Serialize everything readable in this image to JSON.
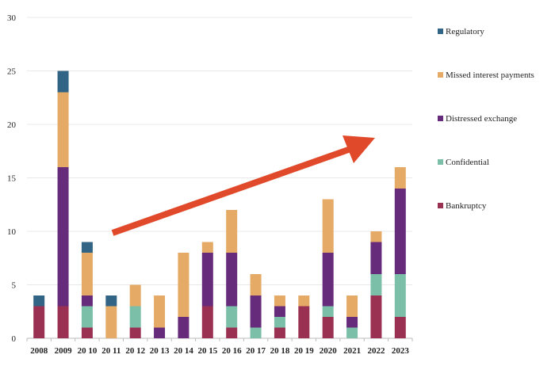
{
  "chart_data": {
    "type": "bar",
    "stacked": true,
    "categories": [
      "2008",
      "2009",
      "2010",
      "2011",
      "2012",
      "2013",
      "2014",
      "2015",
      "2016",
      "2017",
      "2018",
      "2019",
      "2020",
      "2021",
      "2022",
      "2023"
    ],
    "category_labels": [
      "2008",
      "2009",
      "20 10",
      "20 11",
      "20 12",
      "20 13",
      "20 14",
      "20 15",
      "20 16",
      "20 17",
      "20 18",
      "20 19",
      "2020",
      "2021",
      "2022",
      "2023"
    ],
    "series": [
      {
        "name": "Bankruptcy",
        "color": "#9b3152",
        "values": [
          3,
          3,
          1,
          0,
          1,
          0,
          0,
          3,
          1,
          0,
          1,
          3,
          2,
          0,
          4,
          2
        ]
      },
      {
        "name": "Confidential",
        "color": "#7bbfa9",
        "values": [
          0,
          0,
          2,
          0,
          2,
          0,
          0,
          0,
          2,
          1,
          1,
          0,
          1,
          1,
          2,
          4
        ]
      },
      {
        "name": "Distressed exchange",
        "color": "#672b7b",
        "values": [
          0,
          13,
          1,
          0,
          0,
          1,
          2,
          5,
          5,
          3,
          1,
          0,
          5,
          1,
          3,
          8
        ]
      },
      {
        "name": "Missed  interest payments",
        "color": "#e4aa66",
        "values": [
          0,
          7,
          4,
          3,
          2,
          3,
          6,
          1,
          4,
          2,
          1,
          1,
          5,
          2,
          1,
          2
        ]
      },
      {
        "name": "Regulatory",
        "color": "#316485",
        "values": [
          1,
          2,
          1,
          1,
          0,
          0,
          0,
          0,
          0,
          0,
          0,
          0,
          0,
          0,
          0,
          0
        ]
      }
    ],
    "yticks": [
      0,
      5,
      10,
      15,
      20,
      25,
      30
    ],
    "ylim": [
      0,
      30
    ],
    "grid": true,
    "legend": "right",
    "annotation": {
      "type": "arrow",
      "color": "#e0492a",
      "direction": "upward trend"
    }
  }
}
